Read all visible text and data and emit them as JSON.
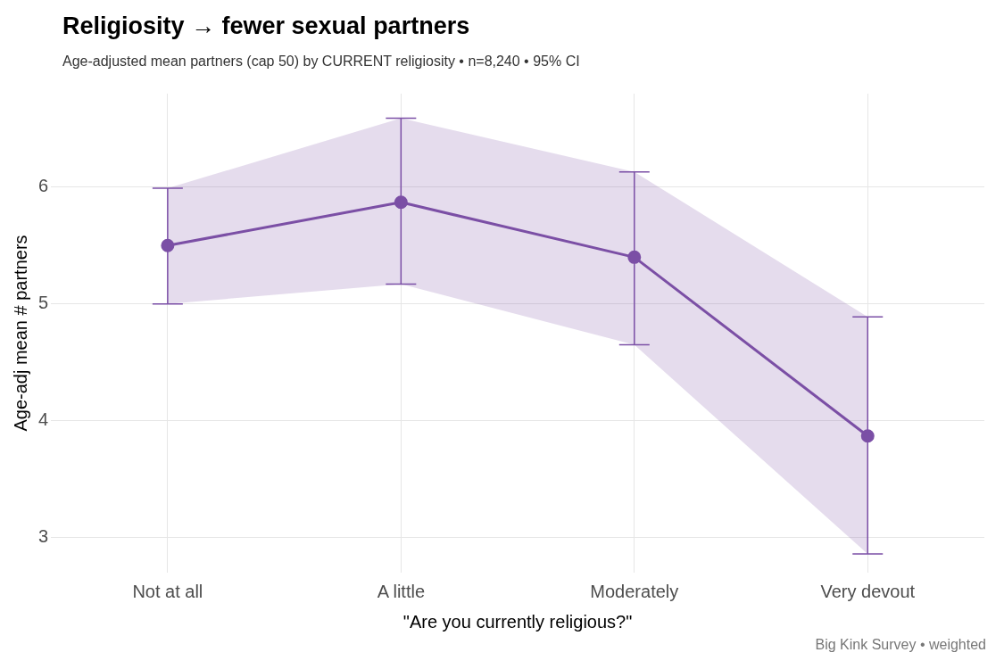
{
  "chart_data": {
    "type": "line",
    "title": "Religiosity → fewer sexual partners",
    "subtitle": "Age-adjusted mean partners (cap 50) by CURRENT religiosity  •  n=8,240  •  95% CI",
    "xlabel": "\"Are you currently religious?\"",
    "ylabel": "Age-adj mean # partners",
    "annotations": [
      "Big Kink Survey  •  weighted"
    ],
    "categories": [
      "Not at all",
      "A little",
      "Moderately",
      "Very devout"
    ],
    "series": [
      {
        "color": "#7b4fa6",
        "values": [
          5.5,
          5.87,
          5.4,
          3.87
        ],
        "errors": [
          [
            5.0,
            5.99
          ],
          [
            5.17,
            6.59
          ],
          [
            4.65,
            6.13
          ],
          [
            2.86,
            4.89
          ]
        ],
        "lower": [
          5.0,
          5.17,
          4.65,
          2.86
        ],
        "upper": [
          5.99,
          6.59,
          6.13,
          4.89
        ]
      }
    ],
    "ylim": [
      2.7,
      6.8
    ],
    "yticks": [
      3,
      4,
      5,
      6
    ],
    "grid": true,
    "legend": false,
    "marker": "circle",
    "line_style": "solid"
  }
}
